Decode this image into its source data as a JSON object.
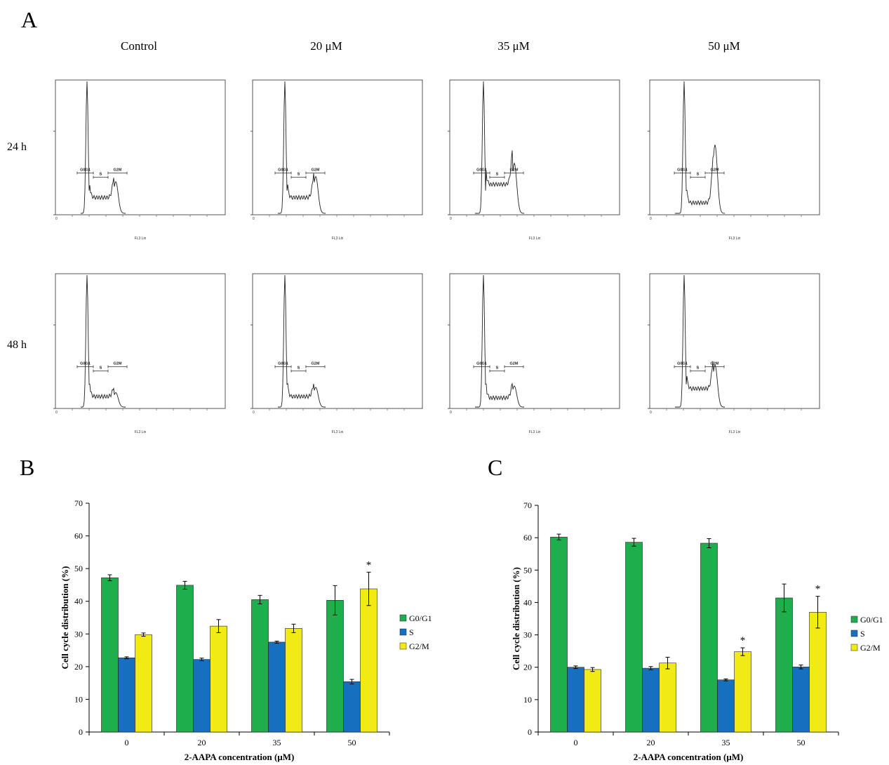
{
  "panel_labels": {
    "a": "A",
    "b": "B",
    "c": "C"
  },
  "flow": {
    "columns": [
      "Control",
      "20 μM",
      "35 μM",
      "50 μM"
    ],
    "rows": [
      "24 h",
      "48 h"
    ],
    "gate_labels": {
      "g0g1": "G0G1",
      "s": "S",
      "g2m": "G2M"
    },
    "axis_zero": "0",
    "x_axis_label": "FL3 Lin"
  },
  "chart_data": [
    {
      "type": "bar",
      "panel": "B",
      "categories": [
        "0",
        "20",
        "35",
        "50"
      ],
      "series": [
        {
          "name": "G0/G1",
          "values": [
            47.2,
            44.9,
            40.5,
            40.3
          ],
          "errors": [
            0.9,
            1.2,
            1.3,
            4.5
          ]
        },
        {
          "name": "S",
          "values": [
            22.7,
            22.2,
            27.5,
            15.4
          ],
          "errors": [
            0.3,
            0.4,
            0.3,
            0.7
          ]
        },
        {
          "name": "G2/M",
          "values": [
            29.8,
            32.4,
            31.7,
            43.8
          ],
          "errors": [
            0.5,
            2.0,
            1.3,
            5.1
          ]
        }
      ],
      "significance": [
        "",
        "",
        "",
        "*"
      ],
      "xlabel": "2-AAPA concentration (μM)",
      "ylabel": "Cell cycle distribution (%)",
      "ylim": [
        0,
        70
      ],
      "yticks": [
        0,
        10,
        20,
        30,
        40,
        50,
        60,
        70
      ],
      "colors": [
        "#1fae4c",
        "#1770bf",
        "#f2ea15"
      ],
      "legend_position": "right",
      "grid": false
    },
    {
      "type": "bar",
      "panel": "C",
      "categories": [
        "0",
        "20",
        "35",
        "50"
      ],
      "series": [
        {
          "name": "G0/G1",
          "values": [
            60.2,
            58.6,
            58.3,
            41.4
          ],
          "errors": [
            0.9,
            1.2,
            1.4,
            4.3
          ]
        },
        {
          "name": "S",
          "values": [
            20.0,
            19.7,
            16.1,
            20.1
          ],
          "errors": [
            0.4,
            0.5,
            0.3,
            0.6
          ]
        },
        {
          "name": "G2/M",
          "values": [
            19.3,
            21.3,
            24.8,
            37.0
          ],
          "errors": [
            0.6,
            1.8,
            1.2,
            4.9
          ]
        }
      ],
      "significance": [
        "",
        "",
        "*",
        "*"
      ],
      "xlabel": "2-AAPA concentration (μM)",
      "ylabel": "Cell cycle distribution (%)",
      "ylim": [
        0,
        70
      ],
      "yticks": [
        0,
        10,
        20,
        30,
        40,
        50,
        60,
        70
      ],
      "colors": [
        "#1fae4c",
        "#1770bf",
        "#f2ea15"
      ],
      "legend_position": "right",
      "grid": false
    }
  ]
}
